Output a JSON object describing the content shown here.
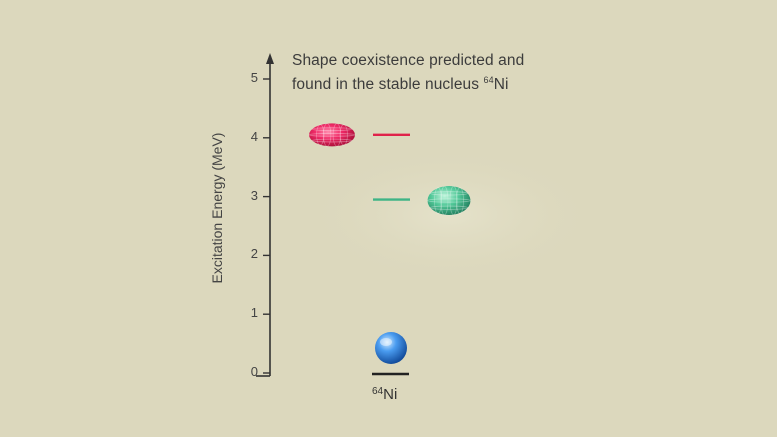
{
  "title": {
    "line1": "Shape coexistence predicted and",
    "line2_prefix": "found in the stable nucleus ",
    "line2_mass": "64",
    "line2_element": "Ni"
  },
  "axis": {
    "label": "Excitation Energy (MeV)",
    "ticks": [
      "0",
      "1",
      "2",
      "3",
      "4",
      "5"
    ],
    "range": [
      0,
      5
    ]
  },
  "nucleus": {
    "mass": "64",
    "element": "Ni"
  },
  "states": [
    {
      "energy_mev": 4.05,
      "shape": "prolate",
      "color": "#e0224a",
      "side": "left"
    },
    {
      "energy_mev": 2.95,
      "shape": "oblate",
      "color": "#3fb486",
      "side": "right"
    },
    {
      "energy_mev": 0,
      "shape": "spherical",
      "color": "#2f7fd6",
      "side": "below"
    }
  ],
  "colors": {
    "background": "#dcd8bd",
    "axis": "#333333"
  }
}
